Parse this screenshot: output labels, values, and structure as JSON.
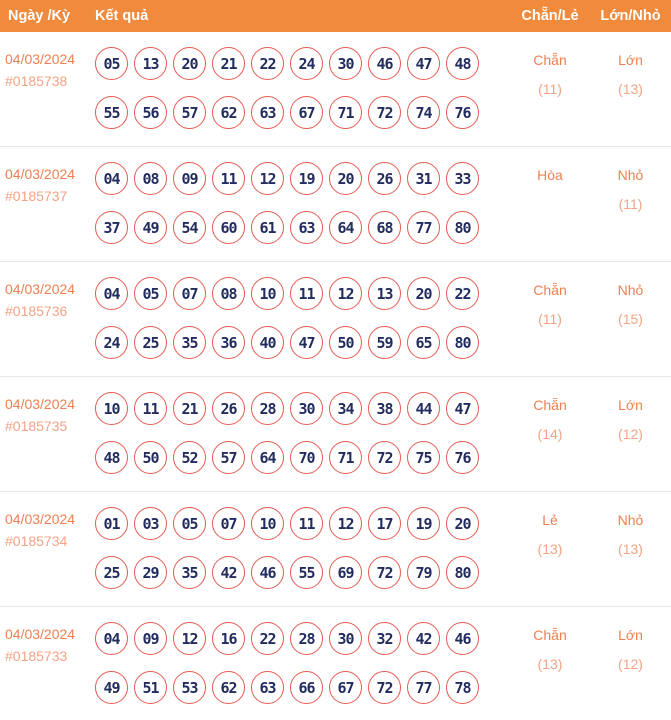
{
  "header": {
    "col_date": "Ngày /Kỳ",
    "col_result": "Kết quả",
    "col_even_odd": "Chẵn/Lẻ",
    "col_big_small": "Lớn/Nhỏ"
  },
  "colors": {
    "header_bg": "#F08A3C",
    "header_text": "#FFFFFF",
    "date_text": "#EF7F50",
    "draw_id_text": "#F4A384",
    "ball_border": "#E65B52",
    "ball_text": "#222C5E",
    "label_text": "#EF7F50",
    "count_text": "#F4A384",
    "row_divider": "#E8E8E8"
  },
  "rows": [
    {
      "date": "04/03/2024",
      "draw_id": "#0185738",
      "numbers_line1": [
        "05",
        "13",
        "20",
        "21",
        "22",
        "24",
        "30",
        "46",
        "47",
        "48"
      ],
      "numbers_line2": [
        "55",
        "56",
        "57",
        "62",
        "63",
        "67",
        "71",
        "72",
        "74",
        "76"
      ],
      "even_odd": {
        "label": "Chẵn",
        "count": "(11)"
      },
      "big_small": {
        "label": "Lớn",
        "count": "(13)"
      }
    },
    {
      "date": "04/03/2024",
      "draw_id": "#0185737",
      "numbers_line1": [
        "04",
        "08",
        "09",
        "11",
        "12",
        "19",
        "20",
        "26",
        "31",
        "33"
      ],
      "numbers_line2": [
        "37",
        "49",
        "54",
        "60",
        "61",
        "63",
        "64",
        "68",
        "77",
        "80"
      ],
      "even_odd": {
        "label": "Hòa",
        "count": ""
      },
      "big_small": {
        "label": "Nhỏ",
        "count": "(11)"
      }
    },
    {
      "date": "04/03/2024",
      "draw_id": "#0185736",
      "numbers_line1": [
        "04",
        "05",
        "07",
        "08",
        "10",
        "11",
        "12",
        "13",
        "20",
        "22"
      ],
      "numbers_line2": [
        "24",
        "25",
        "35",
        "36",
        "40",
        "47",
        "50",
        "59",
        "65",
        "80"
      ],
      "even_odd": {
        "label": "Chẵn",
        "count": "(11)"
      },
      "big_small": {
        "label": "Nhỏ",
        "count": "(15)"
      }
    },
    {
      "date": "04/03/2024",
      "draw_id": "#0185735",
      "numbers_line1": [
        "10",
        "11",
        "21",
        "26",
        "28",
        "30",
        "34",
        "38",
        "44",
        "47"
      ],
      "numbers_line2": [
        "48",
        "50",
        "52",
        "57",
        "64",
        "70",
        "71",
        "72",
        "75",
        "76"
      ],
      "even_odd": {
        "label": "Chẵn",
        "count": "(14)"
      },
      "big_small": {
        "label": "Lớn",
        "count": "(12)"
      }
    },
    {
      "date": "04/03/2024",
      "draw_id": "#0185734",
      "numbers_line1": [
        "01",
        "03",
        "05",
        "07",
        "10",
        "11",
        "12",
        "17",
        "19",
        "20"
      ],
      "numbers_line2": [
        "25",
        "29",
        "35",
        "42",
        "46",
        "55",
        "69",
        "72",
        "79",
        "80"
      ],
      "even_odd": {
        "label": "Lẻ",
        "count": "(13)"
      },
      "big_small": {
        "label": "Nhỏ",
        "count": "(13)"
      }
    },
    {
      "date": "04/03/2024",
      "draw_id": "#0185733",
      "numbers_line1": [
        "04",
        "09",
        "12",
        "16",
        "22",
        "28",
        "30",
        "32",
        "42",
        "46"
      ],
      "numbers_line2": [
        "49",
        "51",
        "53",
        "62",
        "63",
        "66",
        "67",
        "72",
        "77",
        "78"
      ],
      "even_odd": {
        "label": "Chẵn",
        "count": "(13)"
      },
      "big_small": {
        "label": "Lớn",
        "count": "(12)"
      }
    }
  ]
}
